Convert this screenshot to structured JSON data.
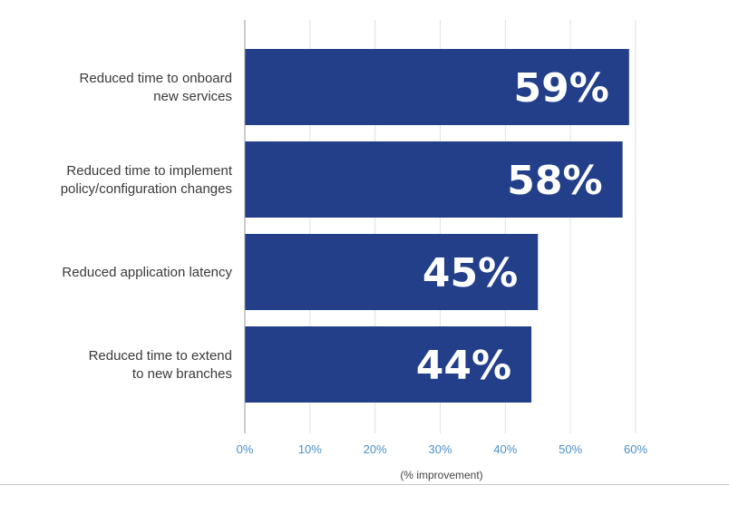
{
  "chart_data": {
    "type": "bar",
    "orientation": "horizontal",
    "categories": [
      [
        "Reduced time to onboard",
        "new services"
      ],
      [
        "Reduced time to implement",
        "policy/configuration changes"
      ],
      [
        "Reduced application latency"
      ],
      [
        "Reduced time to extend",
        "to new branches"
      ]
    ],
    "values": [
      59,
      58,
      45,
      44
    ],
    "value_labels": [
      "59%",
      "58%",
      "45%",
      "44%"
    ],
    "x_ticks": [
      "0%",
      "10%",
      "20%",
      "30%",
      "40%",
      "50%",
      "60%"
    ],
    "xlim": [
      0,
      60
    ],
    "xlabel": "(% improvement)",
    "grid": "vertical",
    "bar_color": "#233f8a",
    "grid_color": "#e2e2e2",
    "axis_color": "#9a9a9a",
    "tick_label_color": "#4a90c8"
  }
}
